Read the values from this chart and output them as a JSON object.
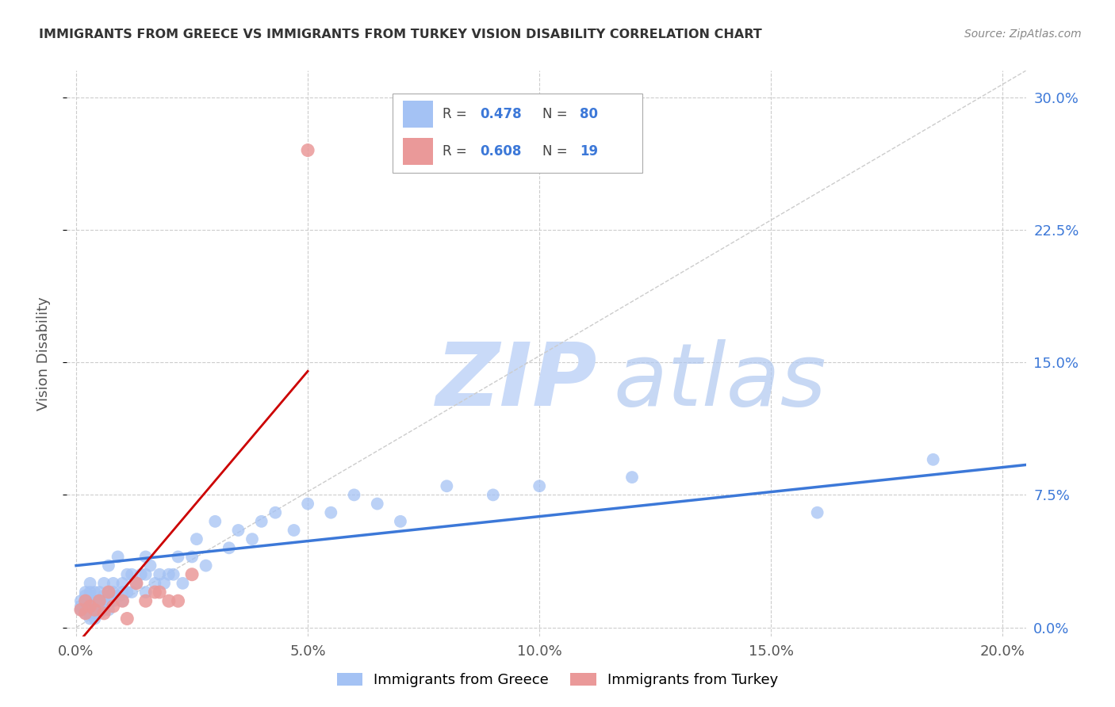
{
  "title": "IMMIGRANTS FROM GREECE VS IMMIGRANTS FROM TURKEY VISION DISABILITY CORRELATION CHART",
  "source": "Source: ZipAtlas.com",
  "ylabel": "Vision Disability",
  "xlabel_ticks": [
    "0.0%",
    "5.0%",
    "10.0%",
    "15.0%",
    "20.0%"
  ],
  "xlabel_vals": [
    0.0,
    0.05,
    0.1,
    0.15,
    0.2
  ],
  "ylabel_ticks": [
    "0.0%",
    "7.5%",
    "15.0%",
    "22.5%",
    "30.0%"
  ],
  "ylabel_vals": [
    0.0,
    0.075,
    0.15,
    0.225,
    0.3
  ],
  "xlim": [
    -0.002,
    0.205
  ],
  "ylim": [
    -0.005,
    0.315
  ],
  "greece_R": 0.478,
  "greece_N": 80,
  "turkey_R": 0.608,
  "turkey_N": 19,
  "greece_color": "#a4c2f4",
  "turkey_color": "#ea9999",
  "greece_line_color": "#3c78d8",
  "turkey_line_color": "#cc0000",
  "diagonal_line_color": "#cccccc",
  "background_color": "#ffffff",
  "grid_color": "#cccccc",
  "watermark_zip": "ZIP",
  "watermark_atlas": "atlas",
  "watermark_color": "#c9daf8",
  "greece_x": [
    0.001,
    0.001,
    0.001,
    0.002,
    0.002,
    0.002,
    0.002,
    0.002,
    0.002,
    0.003,
    0.003,
    0.003,
    0.003,
    0.003,
    0.003,
    0.003,
    0.003,
    0.004,
    0.004,
    0.004,
    0.004,
    0.004,
    0.005,
    0.005,
    0.005,
    0.005,
    0.006,
    0.006,
    0.006,
    0.006,
    0.007,
    0.007,
    0.007,
    0.007,
    0.008,
    0.008,
    0.008,
    0.009,
    0.009,
    0.01,
    0.01,
    0.01,
    0.011,
    0.011,
    0.012,
    0.012,
    0.013,
    0.014,
    0.015,
    0.015,
    0.015,
    0.016,
    0.017,
    0.018,
    0.019,
    0.02,
    0.021,
    0.022,
    0.023,
    0.025,
    0.026,
    0.028,
    0.03,
    0.033,
    0.035,
    0.038,
    0.04,
    0.043,
    0.047,
    0.05,
    0.055,
    0.06,
    0.065,
    0.07,
    0.08,
    0.09,
    0.1,
    0.12,
    0.16,
    0.185
  ],
  "greece_y": [
    0.01,
    0.012,
    0.015,
    0.008,
    0.01,
    0.012,
    0.015,
    0.018,
    0.02,
    0.005,
    0.008,
    0.01,
    0.012,
    0.015,
    0.018,
    0.02,
    0.025,
    0.005,
    0.008,
    0.012,
    0.015,
    0.02,
    0.008,
    0.012,
    0.015,
    0.02,
    0.01,
    0.015,
    0.018,
    0.025,
    0.01,
    0.015,
    0.02,
    0.035,
    0.015,
    0.02,
    0.025,
    0.018,
    0.04,
    0.015,
    0.02,
    0.025,
    0.02,
    0.03,
    0.02,
    0.03,
    0.025,
    0.03,
    0.02,
    0.03,
    0.04,
    0.035,
    0.025,
    0.03,
    0.025,
    0.03,
    0.03,
    0.04,
    0.025,
    0.04,
    0.05,
    0.035,
    0.06,
    0.045,
    0.055,
    0.05,
    0.06,
    0.065,
    0.055,
    0.07,
    0.065,
    0.075,
    0.07,
    0.06,
    0.08,
    0.075,
    0.08,
    0.085,
    0.065,
    0.095
  ],
  "turkey_x": [
    0.001,
    0.002,
    0.002,
    0.003,
    0.004,
    0.005,
    0.006,
    0.007,
    0.008,
    0.01,
    0.011,
    0.013,
    0.015,
    0.017,
    0.018,
    0.02,
    0.022,
    0.025,
    0.05
  ],
  "turkey_y": [
    0.01,
    0.008,
    0.015,
    0.012,
    0.01,
    0.015,
    0.008,
    0.02,
    0.012,
    0.015,
    0.005,
    0.025,
    0.015,
    0.02,
    0.02,
    0.015,
    0.015,
    0.03,
    0.27
  ],
  "greece_trendline_x": [
    0.0,
    0.205
  ],
  "greece_trendline_y": [
    0.035,
    0.092
  ],
  "turkey_trendline_x": [
    0.0,
    0.05
  ],
  "turkey_trendline_y": [
    -0.01,
    0.145
  ]
}
